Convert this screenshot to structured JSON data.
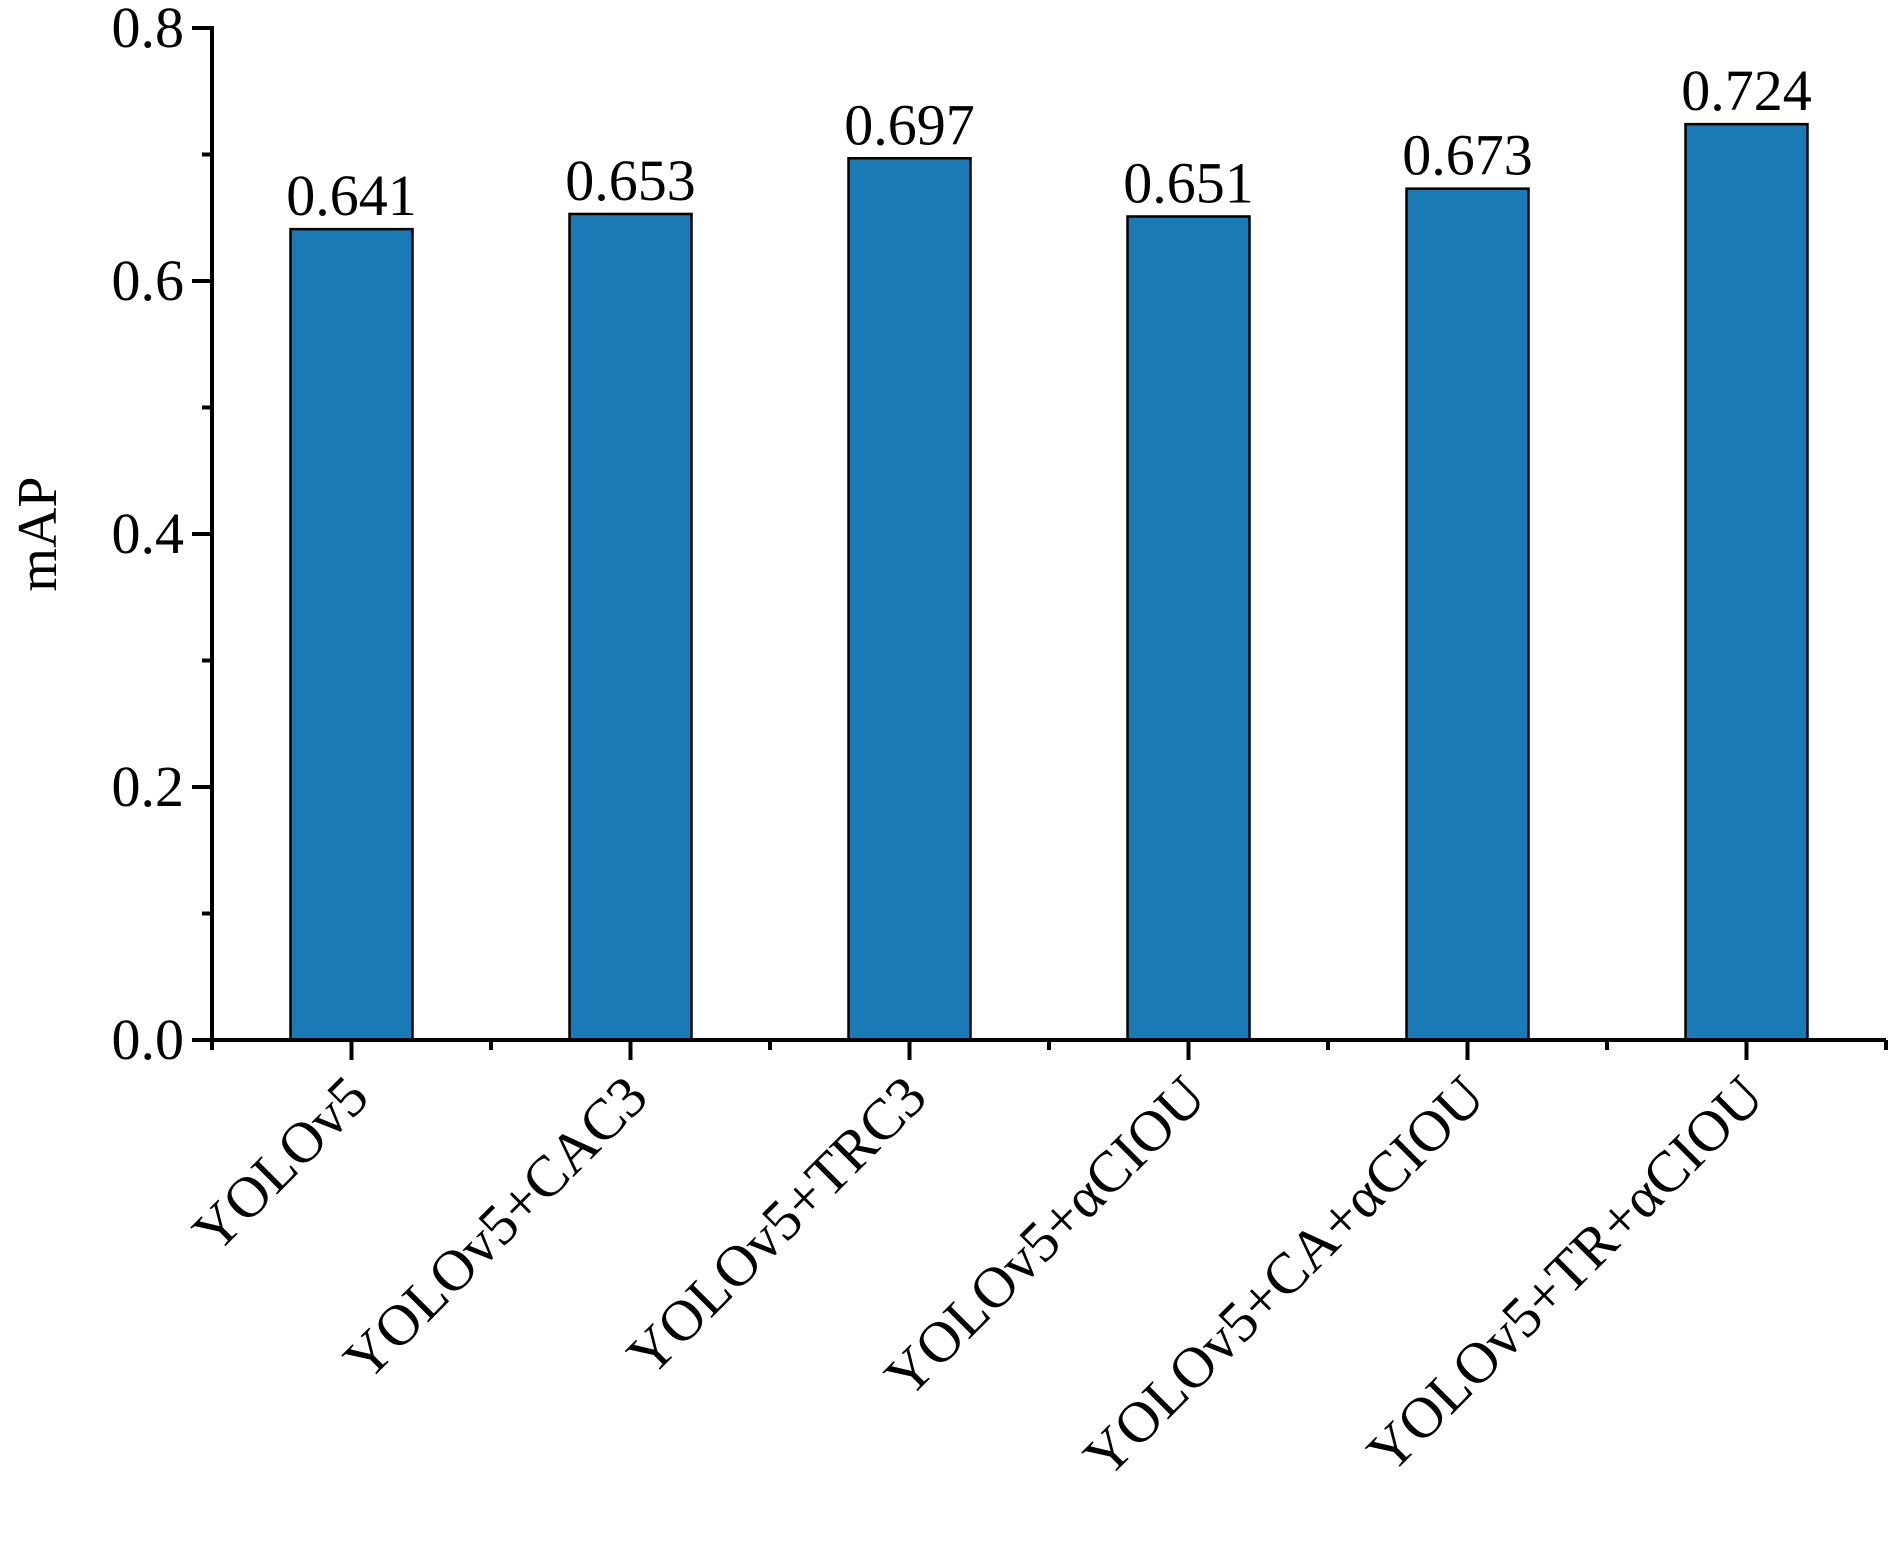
{
  "chart_data": {
    "type": "bar",
    "title": "",
    "xlabel": "",
    "ylabel": "mAP",
    "ylim": [
      0,
      0.8
    ],
    "yticks": [
      "0.0",
      "0.2",
      "0.4",
      "0.6",
      "0.8"
    ],
    "ytick_values": [
      0.0,
      0.2,
      0.4,
      0.6,
      0.8
    ],
    "minor_ytick_step": 0.1,
    "grid": false,
    "legend": null,
    "categories": [
      "YOLOv5",
      "YOLOv5+CAC3",
      "YOLOv5+TRC3",
      "YOLOv5+αCIOU",
      "YOLOv5+CA+αCIOU",
      "YOLOv5+TR+αCIOU"
    ],
    "values": [
      0.641,
      0.653,
      0.697,
      0.651,
      0.673,
      0.724
    ],
    "data_labels": [
      "0.641",
      "0.653",
      "0.697",
      "0.651",
      "0.673",
      "0.724"
    ],
    "bar_color": "#1a7ab5",
    "bar_edge_color": "#000000",
    "xtick_rotation": -45
  }
}
